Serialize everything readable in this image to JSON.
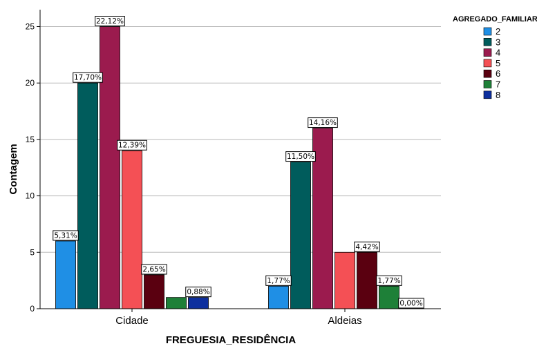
{
  "chart_data": {
    "type": "bar",
    "xlabel": "FREGUESIA_RESIDÊNCIA",
    "ylabel": "Contagem",
    "ylim": [
      0,
      26.5
    ],
    "yticks": [
      0,
      5,
      10,
      15,
      20,
      25
    ],
    "grid": true,
    "legend": {
      "title": "AGREGADO_FAMILIAR",
      "placement": "top-right"
    },
    "categories": [
      "Cidade",
      "Aldeias"
    ],
    "series": [
      {
        "name": "2",
        "color": "#1f8fe5",
        "values": [
          6,
          2
        ],
        "labels": [
          "5,31%",
          "1,77%"
        ]
      },
      {
        "name": "3",
        "color": "#005c5c",
        "values": [
          20,
          13
        ],
        "labels": [
          "17,70%",
          "11,50%"
        ]
      },
      {
        "name": "4",
        "color": "#9b1b4e",
        "values": [
          25,
          16
        ],
        "labels": [
          "22,12%",
          "14,16%"
        ]
      },
      {
        "name": "5",
        "color": "#f45055",
        "values": [
          14,
          5
        ],
        "labels": [
          "12,39%",
          ""
        ]
      },
      {
        "name": "6",
        "color": "#5a0010",
        "values": [
          3,
          5
        ],
        "labels": [
          "2,65%",
          "4,42%"
        ]
      },
      {
        "name": "7",
        "color": "#1e8038",
        "values": [
          1,
          2
        ],
        "labels": [
          "",
          "1,77%"
        ]
      },
      {
        "name": "8",
        "color": "#0d2f9e",
        "values": [
          1,
          0
        ],
        "labels": [
          "0,88%",
          "0,00%"
        ]
      }
    ]
  }
}
